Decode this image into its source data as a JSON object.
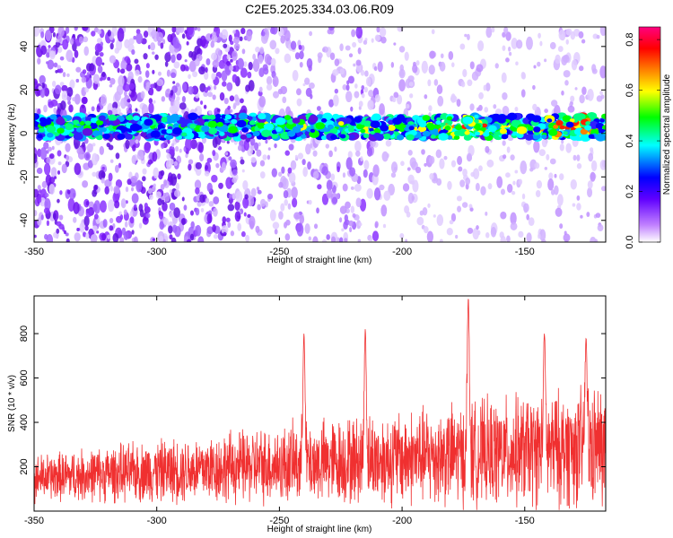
{
  "title": "C2E5.2025.334.03.06.R09",
  "colors": {
    "snr_line": "#f03030",
    "axis": "#000000"
  },
  "chart_data": [
    {
      "type": "heatmap",
      "name": "spectrogram",
      "xlabel": "Height of straight line (km)",
      "ylabel": "Frequency (Hz)",
      "xlim": [
        -350,
        -117
      ],
      "ylim": [
        -50,
        49
      ],
      "xticks": [
        -350,
        -300,
        -250,
        -200,
        -150
      ],
      "yticks": [
        -40,
        -20,
        0,
        20,
        40
      ],
      "colorbar": {
        "label": "Normalized spectral amplitude",
        "range": [
          0,
          0.85
        ],
        "ticks": [
          "0.0",
          "0.2",
          "0.4",
          "0.6",
          "0.8"
        ],
        "colormap": [
          "#ffffff",
          "#8040ff",
          "#0000ff",
          "#00ffff",
          "#00ff00",
          "#ffff00",
          "#ff8000",
          "#ff0000",
          "#ff0080"
        ]
      },
      "band": {
        "frequency_center": 3,
        "frequency_halfwidth": 5,
        "note": "strongest amplitude near -175 and -130 km"
      }
    },
    {
      "type": "line",
      "name": "snr",
      "xlabel": "Height of straight line (km)",
      "ylabel": "SNR (10 * v/v)",
      "xlim": [
        -350,
        -117
      ],
      "ylim": [
        0,
        970
      ],
      "xticks": [
        -350,
        -300,
        -250,
        -200,
        -150
      ],
      "yticks": [
        200,
        400,
        600,
        800
      ],
      "peaks": [
        {
          "x": -240,
          "y": 800
        },
        {
          "x": -215,
          "y": 820
        },
        {
          "x": -173,
          "y": 960
        },
        {
          "x": -142,
          "y": 800
        },
        {
          "x": -125,
          "y": 780
        }
      ]
    }
  ]
}
